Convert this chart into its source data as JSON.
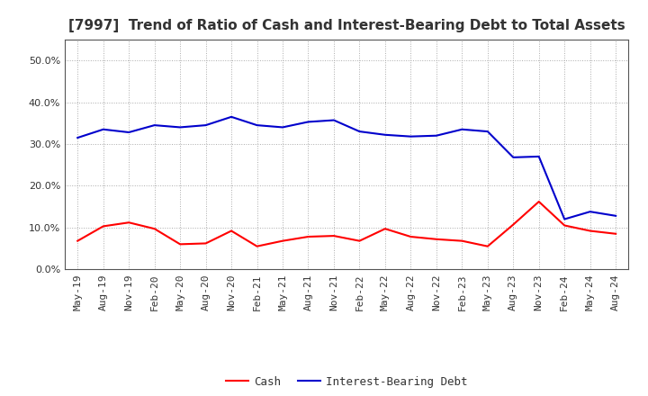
{
  "title": "[7997]  Trend of Ratio of Cash and Interest-Bearing Debt to Total Assets",
  "background_color": "#ffffff",
  "grid_color": "#aaaaaa",
  "ylim": [
    0.0,
    0.55
  ],
  "yticks": [
    0.0,
    0.1,
    0.2,
    0.3,
    0.4,
    0.5
  ],
  "x_labels": [
    "May-19",
    "Aug-19",
    "Nov-19",
    "Feb-20",
    "May-20",
    "Aug-20",
    "Nov-20",
    "Feb-21",
    "May-21",
    "Aug-21",
    "Nov-21",
    "Feb-22",
    "May-22",
    "Aug-22",
    "Nov-22",
    "Feb-23",
    "May-23",
    "Aug-23",
    "Nov-23",
    "Feb-24",
    "May-24",
    "Aug-24"
  ],
  "cash": [
    0.068,
    0.103,
    0.112,
    0.097,
    0.06,
    0.062,
    0.092,
    0.055,
    0.068,
    0.078,
    0.08,
    0.068,
    0.097,
    0.078,
    0.072,
    0.068,
    0.055,
    0.107,
    0.162,
    0.105,
    0.092,
    0.085
  ],
  "interest_bearing_debt": [
    0.315,
    0.335,
    0.328,
    0.345,
    0.34,
    0.345,
    0.365,
    0.345,
    0.34,
    0.353,
    0.357,
    0.33,
    0.322,
    0.318,
    0.32,
    0.335,
    0.33,
    0.268,
    0.27,
    0.12,
    0.138,
    0.128
  ],
  "cash_color": "#ff0000",
  "debt_color": "#0000cc",
  "cash_label": "Cash",
  "debt_label": "Interest-Bearing Debt",
  "line_width": 1.5,
  "title_fontsize": 11,
  "legend_fontsize": 9,
  "tick_fontsize": 8,
  "title_color": "#333333"
}
